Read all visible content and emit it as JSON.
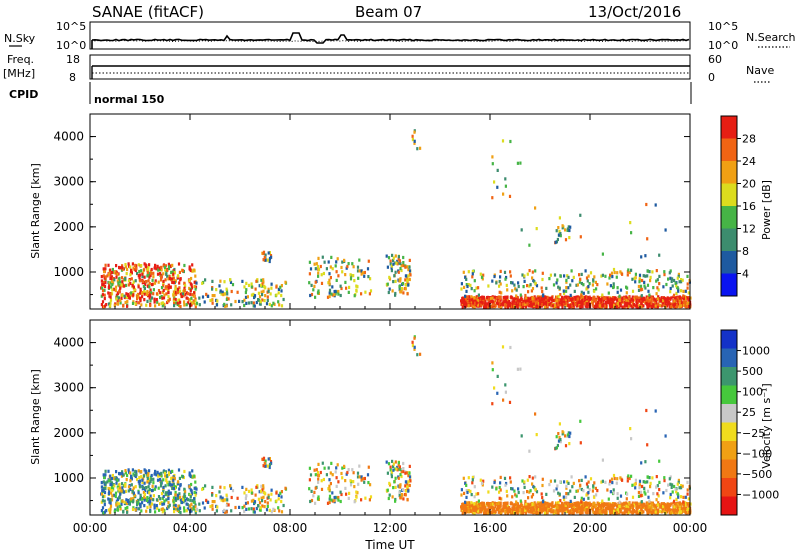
{
  "header": {
    "title": "SANAE (fitACF)",
    "beam": "Beam 07",
    "date": "13/Oct/2016"
  },
  "top_panels": {
    "nsky_label": "N.Sky",
    "nsky_ticks": [
      "10^5",
      "10^0"
    ],
    "nsearch_label": "N.Search",
    "nsearch_ticks": [
      "10^5",
      "10^0"
    ],
    "freq_label": "Freq.",
    "freq_unit": "[MHz]",
    "freq_ticks": [
      "18",
      "8"
    ],
    "nave_label": "Nave",
    "nave_ticks": [
      "60",
      "0"
    ],
    "cpid_label": "CPID",
    "cpid_value": "normal 150"
  },
  "colors": {
    "power_scale": [
      "#0a14f0",
      "#1e5aa0",
      "#3c8c6e",
      "#46b446",
      "#dcdc1e",
      "#f0a014",
      "#f06414",
      "#e61e14"
    ],
    "velocity_scale": [
      "#1432c8",
      "#2864b4",
      "#3c966e",
      "#46c83c",
      "#c8c8c8",
      "#f0dc1e",
      "#f0a014",
      "#f07814",
      "#f04614",
      "#e61414"
    ]
  },
  "chart_data": [
    {
      "type": "heatmap",
      "name": "power",
      "ylabel": "Slant Range [km]",
      "xlabel": "",
      "x_ticks": [
        "00:00",
        "04:00",
        "08:00",
        "12:00",
        "16:00",
        "20:00",
        "00:00"
      ],
      "y_ticks": [
        "1000",
        "2000",
        "3000",
        "4000"
      ],
      "ylim": [
        180,
        4500
      ],
      "xlim_hours": [
        0,
        24
      ],
      "colorbar": {
        "label": "Power [dB]",
        "ticks": [
          "4",
          "8",
          "12",
          "16",
          "20",
          "24",
          "28"
        ],
        "range": [
          0,
          32
        ]
      }
    },
    {
      "type": "heatmap",
      "name": "velocity",
      "ylabel": "Slant Range [km]",
      "xlabel": "Time UT",
      "x_ticks": [
        "00:00",
        "04:00",
        "08:00",
        "12:00",
        "16:00",
        "20:00",
        "00:00"
      ],
      "y_ticks": [
        "1000",
        "2000",
        "3000",
        "4000"
      ],
      "ylim": [
        180,
        4500
      ],
      "xlim_hours": [
        0,
        24
      ],
      "colorbar": {
        "label": "Velocity [m s⁻¹]",
        "ticks": [
          "1000",
          "500",
          "100",
          "25",
          "−25",
          "−100",
          "−500",
          "−1000"
        ]
      }
    }
  ]
}
